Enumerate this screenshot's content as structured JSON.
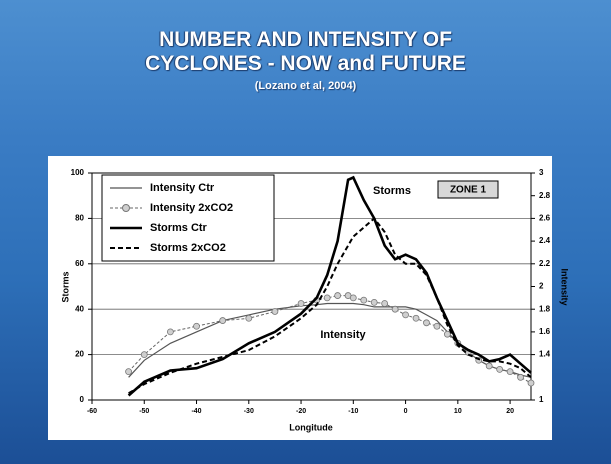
{
  "chart_data": {
    "type": "line",
    "title": "NUMBER AND INTENSITY OF CYCLONES - NOW and FUTURE",
    "subtitle": "(Lozano et al, 2004)",
    "x_label": "Longitude",
    "y_label": "Storms",
    "y2_label": "Intensity",
    "annotations": [
      "Storms",
      "Intensity",
      "ZONE 1"
    ],
    "x": [
      -53,
      -50,
      -45,
      -40,
      -35,
      -30,
      -25,
      -20,
      -17,
      -15,
      -13,
      -11,
      -10,
      -8,
      -6,
      -4,
      -2,
      0,
      2,
      4,
      6,
      8,
      10,
      12,
      14,
      16,
      18,
      20,
      22,
      24
    ],
    "xlim": [
      -60,
      24
    ],
    "xticks": [
      -60,
      -50,
      -40,
      -30,
      -20,
      -10,
      0,
      10,
      20
    ],
    "ylim": [
      0,
      100
    ],
    "yticks": [
      0,
      20,
      40,
      60,
      80,
      100
    ],
    "y2lim": [
      1,
      3
    ],
    "y2ticks": [
      1,
      1.4,
      1.6,
      1.8,
      2,
      2.2,
      2.4,
      2.6,
      2.8,
      3
    ],
    "grid": true,
    "legend": "upper left",
    "series": [
      {
        "name": "Intensity Ctr",
        "color": "#555555",
        "width": 1.2,
        "dash": "none",
        "marker": "none",
        "axis": "y2",
        "values": [
          1.2,
          1.35,
          1.5,
          1.6,
          1.7,
          1.75,
          1.8,
          1.83,
          1.84,
          1.85,
          1.85,
          1.85,
          1.85,
          1.84,
          1.82,
          1.82,
          1.82,
          1.82,
          1.8,
          1.75,
          1.7,
          1.6,
          1.5,
          1.42,
          1.35,
          1.3,
          1.27,
          1.25,
          1.22,
          1.2
        ]
      },
      {
        "name": "Intensity 2xCO2",
        "color": "#666666",
        "width": 1,
        "dash": "3,2",
        "marker": "circle",
        "axis": "y2",
        "values": [
          1.25,
          1.4,
          1.6,
          1.65,
          1.7,
          1.72,
          1.78,
          1.85,
          1.88,
          1.9,
          1.92,
          1.92,
          1.9,
          1.88,
          1.86,
          1.85,
          1.8,
          1.75,
          1.72,
          1.68,
          1.65,
          1.58,
          1.5,
          1.42,
          1.35,
          1.3,
          1.27,
          1.25,
          1.2,
          1.15
        ]
      },
      {
        "name": "Storms Ctr",
        "color": "#000000",
        "width": 2.6,
        "dash": "none",
        "marker": "none",
        "axis": "y",
        "values": [
          2,
          8,
          13,
          14,
          18,
          25,
          30,
          38,
          45,
          55,
          70,
          97,
          98,
          88,
          80,
          68,
          62,
          64,
          62,
          56,
          45,
          35,
          25,
          22,
          20,
          17,
          18,
          20,
          16,
          12
        ]
      },
      {
        "name": "Storms 2xCO2",
        "color": "#000000",
        "width": 2,
        "dash": "5,3",
        "marker": "none",
        "axis": "y",
        "values": [
          3,
          7,
          12,
          16,
          19,
          22,
          28,
          36,
          42,
          50,
          60,
          68,
          72,
          76,
          80,
          74,
          64,
          60,
          60,
          55,
          45,
          33,
          24,
          20,
          18,
          17,
          17,
          16,
          14,
          10
        ]
      }
    ]
  }
}
